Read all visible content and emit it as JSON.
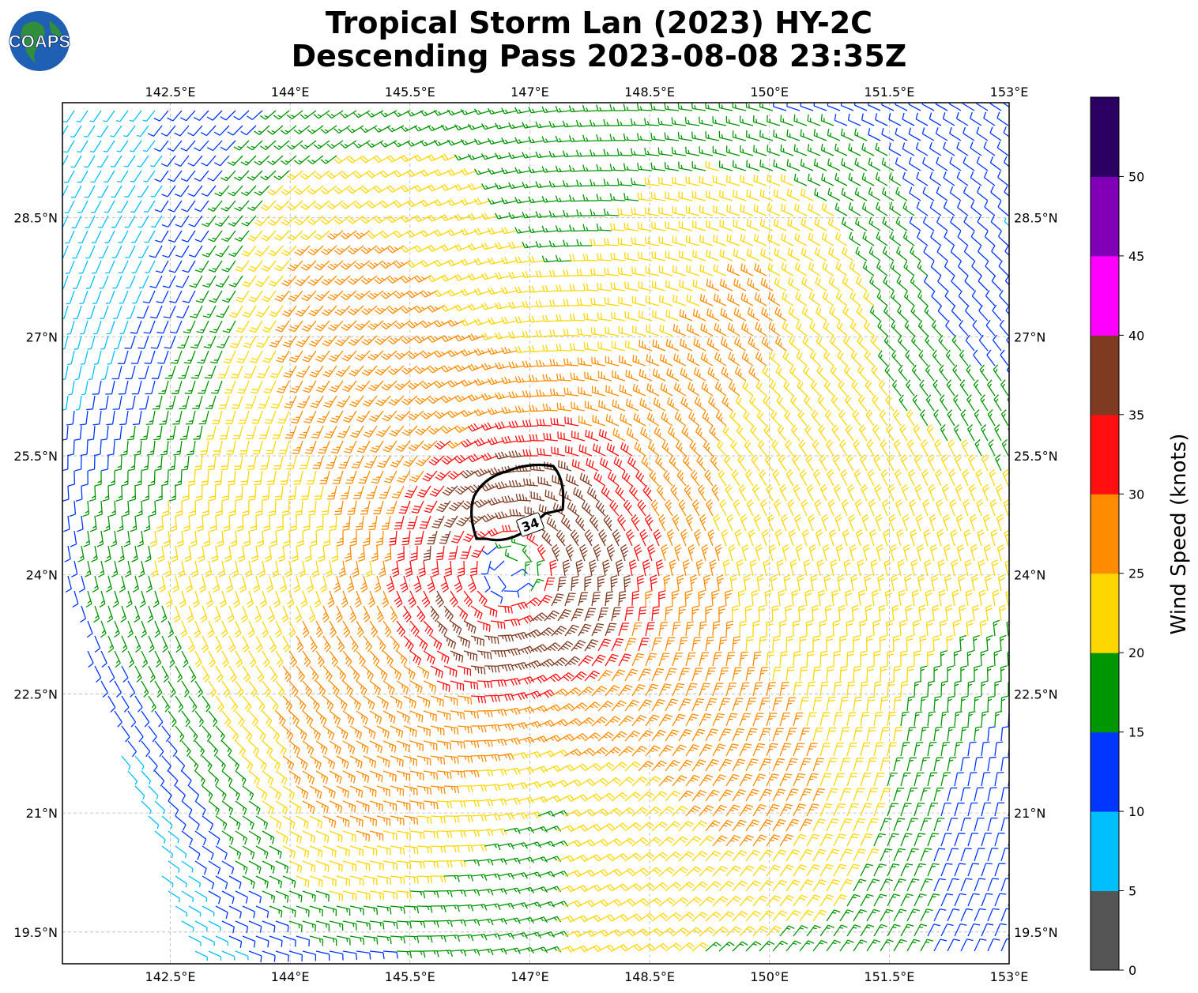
{
  "title": {
    "line1": "Tropical Storm Lan (2023) HY-2C",
    "line2": "Descending Pass 2023-08-08 23:35Z"
  },
  "logo": {
    "text": "COAPS",
    "icon": "globe-logo-icon"
  },
  "map": {
    "lon_ticks": [
      "142.5°E",
      "144°E",
      "145.5°E",
      "147°E",
      "148.5°E",
      "150°E",
      "151.5°E",
      "153°E"
    ],
    "lat_ticks": [
      "28.5°N",
      "27°N",
      "25.5°N",
      "24°N",
      "22.5°N",
      "21°N",
      "19.5°N"
    ],
    "lon_range": [
      141.15,
      153.0
    ],
    "lat_range": [
      19.1,
      29.95
    ],
    "storm_center": {
      "lon": 146.75,
      "lat": 24.05
    },
    "contour_label": "34",
    "grid": true
  },
  "colorbar": {
    "label": "Wind Speed (knots)",
    "ticks": [
      "0",
      "5",
      "10",
      "15",
      "20",
      "25",
      "30",
      "35",
      "40",
      "45",
      "50"
    ],
    "colors": [
      "#555555",
      "#00bfff",
      "#0036ff",
      "#009600",
      "#ffd700",
      "#ff8c00",
      "#ff0f0f",
      "#7f3b22",
      "#ff00ff",
      "#8000b8",
      "#2a0063"
    ]
  }
}
